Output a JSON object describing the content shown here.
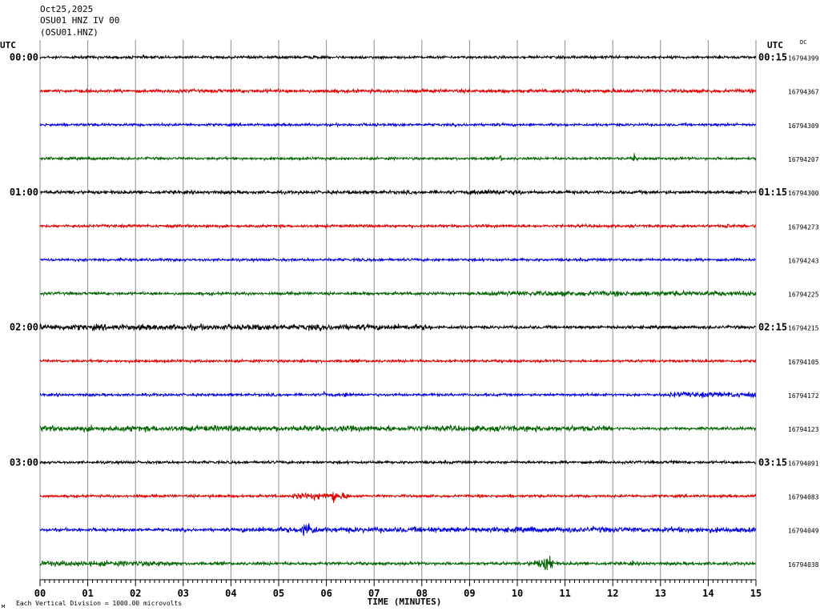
{
  "header": {
    "date": "Oct25,2025",
    "station": "OSU01 HNZ IV 00",
    "channel": "(OSU01.HNZ)"
  },
  "left_axis_label": "UTC",
  "right_axis_label": "UTC",
  "dc_label": "DC",
  "footer_note": "Each Vertical Division = 1000.00 microvolts",
  "corner_mark": "м",
  "chart_data": {
    "type": "line",
    "title": "OSU01 HNZ IV 00",
    "xlabel": "TIME (MINUTES)",
    "ylabel": "UTC",
    "xlim": [
      0,
      15
    ],
    "x_ticks": [
      "00",
      "01",
      "02",
      "03",
      "04",
      "05",
      "06",
      "07",
      "08",
      "09",
      "10",
      "11",
      "12",
      "13",
      "14",
      "15"
    ],
    "grid": true,
    "trace_colors": [
      "#000000",
      "#e00000",
      "#0000e0",
      "#006400"
    ],
    "series": [
      {
        "left_time": "00:00",
        "right_time": "00:15",
        "dc": "16794399",
        "color": "#000000",
        "amplitude": 1.2,
        "events": [
          {
            "start": 5.5,
            "end": 6.0,
            "amp": 2
          }
        ]
      },
      {
        "left_time": "",
        "right_time": "",
        "dc": "16794367",
        "color": "#e00000",
        "amplitude": 1.4,
        "events": [
          {
            "start": 2.5,
            "end": 15,
            "amp": 1.6
          }
        ]
      },
      {
        "left_time": "",
        "right_time": "",
        "dc": "16794309",
        "color": "#0000e0",
        "amplitude": 1.2,
        "events": []
      },
      {
        "left_time": "",
        "right_time": "",
        "dc": "16794207",
        "color": "#006400",
        "amplitude": 1.2,
        "events": [
          {
            "start": 9.6,
            "end": 9.7,
            "amp": 4
          },
          {
            "start": 12.4,
            "end": 12.5,
            "amp": 5
          }
        ]
      },
      {
        "left_time": "01:00",
        "right_time": "01:15",
        "dc": "16794300",
        "color": "#000000",
        "amplitude": 1.5,
        "events": [
          {
            "start": 6.1,
            "end": 7.1,
            "amp": 2.2
          },
          {
            "start": 9.0,
            "end": 10.1,
            "amp": 2.4
          }
        ]
      },
      {
        "left_time": "",
        "right_time": "",
        "dc": "16794273",
        "color": "#e00000",
        "amplitude": 1.3,
        "events": [
          {
            "start": 3.4,
            "end": 3.6,
            "amp": 3
          },
          {
            "start": 14.3,
            "end": 14.5,
            "amp": 3
          }
        ]
      },
      {
        "left_time": "",
        "right_time": "",
        "dc": "16794243",
        "color": "#0000e0",
        "amplitude": 1.2,
        "events": [
          {
            "start": 6.6,
            "end": 6.8,
            "amp": 2.5
          }
        ]
      },
      {
        "left_time": "",
        "right_time": "",
        "dc": "16794225",
        "color": "#006400",
        "amplitude": 1.3,
        "events": [
          {
            "start": 7.8,
            "end": 7.9,
            "amp": 4
          },
          {
            "start": 9.3,
            "end": 15,
            "amp": 2.3
          }
        ]
      },
      {
        "left_time": "02:00",
        "right_time": "02:15",
        "dc": "16794215",
        "color": "#000000",
        "amplitude": 1.4,
        "events": [
          {
            "start": 0,
            "end": 8.2,
            "amp": 2.6
          }
        ]
      },
      {
        "left_time": "",
        "right_time": "",
        "dc": "16794105",
        "color": "#e00000",
        "amplitude": 1.2,
        "events": [
          {
            "start": 5.4,
            "end": 5.6,
            "amp": 2.5
          }
        ]
      },
      {
        "left_time": "",
        "right_time": "",
        "dc": "16794172",
        "color": "#0000e0",
        "amplitude": 1.2,
        "events": [
          {
            "start": 5.9,
            "end": 6.0,
            "amp": 4
          },
          {
            "start": 6.3,
            "end": 6.5,
            "amp": 3.5
          },
          {
            "start": 13.2,
            "end": 15,
            "amp": 2.4
          }
        ]
      },
      {
        "left_time": "",
        "right_time": "",
        "dc": "16794123",
        "color": "#006400",
        "amplitude": 1.3,
        "events": [
          {
            "start": 0,
            "end": 12.0,
            "amp": 2.6
          }
        ]
      },
      {
        "left_time": "03:00",
        "right_time": "03:15",
        "dc": "16794091",
        "color": "#000000",
        "amplitude": 1.2,
        "events": [
          {
            "start": 13.1,
            "end": 13.4,
            "amp": 2.5
          }
        ]
      },
      {
        "left_time": "",
        "right_time": "",
        "dc": "16794083",
        "color": "#e00000",
        "amplitude": 1.2,
        "events": [
          {
            "start": 3.5,
            "end": 3.6,
            "amp": 3
          },
          {
            "start": 5.3,
            "end": 6.5,
            "amp": 3
          },
          {
            "start": 6.0,
            "end": 6.3,
            "amp": 7
          }
        ]
      },
      {
        "left_time": "",
        "right_time": "",
        "dc": "16794049",
        "color": "#0000e0",
        "amplitude": 1.4,
        "events": [
          {
            "start": 4.2,
            "end": 15,
            "amp": 2.4
          },
          {
            "start": 5.3,
            "end": 5.9,
            "amp": 8
          },
          {
            "start": 10.2,
            "end": 10.4,
            "amp": 5
          }
        ]
      },
      {
        "left_time": "",
        "right_time": "",
        "dc": "16794038",
        "color": "#006400",
        "amplitude": 1.4,
        "events": [
          {
            "start": 0,
            "end": 2.9,
            "amp": 2.4
          },
          {
            "start": 10.0,
            "end": 11.0,
            "amp": 4
          },
          {
            "start": 10.5,
            "end": 10.8,
            "amp": 11
          },
          {
            "start": 12.3,
            "end": 12.5,
            "amp": 3
          }
        ]
      }
    ]
  }
}
